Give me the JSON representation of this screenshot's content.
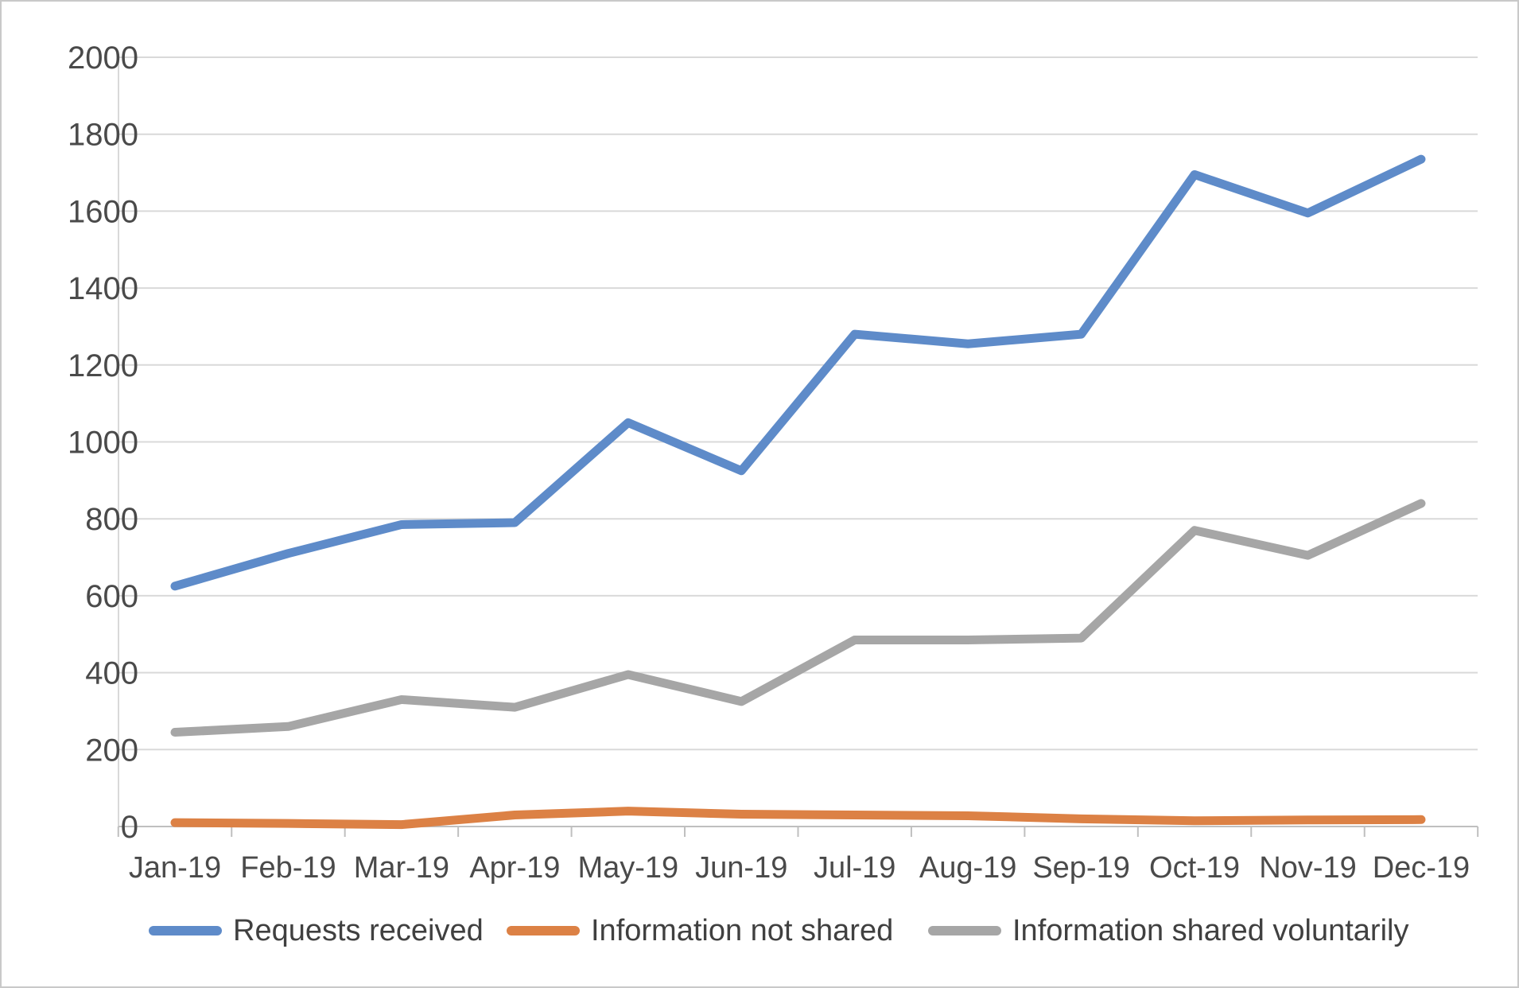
{
  "chart_data": {
    "type": "line",
    "title": "",
    "xlabel": "",
    "ylabel": "",
    "categories": [
      "Jan-19",
      "Feb-19",
      "Mar-19",
      "Apr-19",
      "May-19",
      "Jun-19",
      "Jul-19",
      "Aug-19",
      "Sep-19",
      "Oct-19",
      "Nov-19",
      "Dec-19"
    ],
    "series": [
      {
        "name": "Requests received",
        "color": "#5E8BC9",
        "values": [
          625,
          710,
          785,
          790,
          1050,
          925,
          1280,
          1255,
          1280,
          1695,
          1595,
          1735
        ]
      },
      {
        "name": "Information not shared",
        "color": "#DC8145",
        "values": [
          10,
          8,
          5,
          30,
          40,
          32,
          30,
          28,
          20,
          15,
          17,
          18
        ]
      },
      {
        "name": "Information shared voluntarily",
        "color": "#A6A6A6",
        "values": [
          245,
          260,
          330,
          310,
          395,
          325,
          485,
          485,
          490,
          770,
          705,
          840
        ]
      }
    ],
    "ylim": [
      0,
      2000
    ],
    "y_ticks": [
      0,
      200,
      400,
      600,
      800,
      1000,
      1200,
      1400,
      1600,
      1800,
      2000
    ],
    "grid": "horizontal",
    "legend_position": "bottom"
  },
  "style_colors": {
    "gridline": "#d9d9d9",
    "axis_line": "#bfbfbf",
    "left_axis_line": "#d9d9d9",
    "tick_mark": "#bfbfbf",
    "frame_border": "#c9c9c9"
  }
}
